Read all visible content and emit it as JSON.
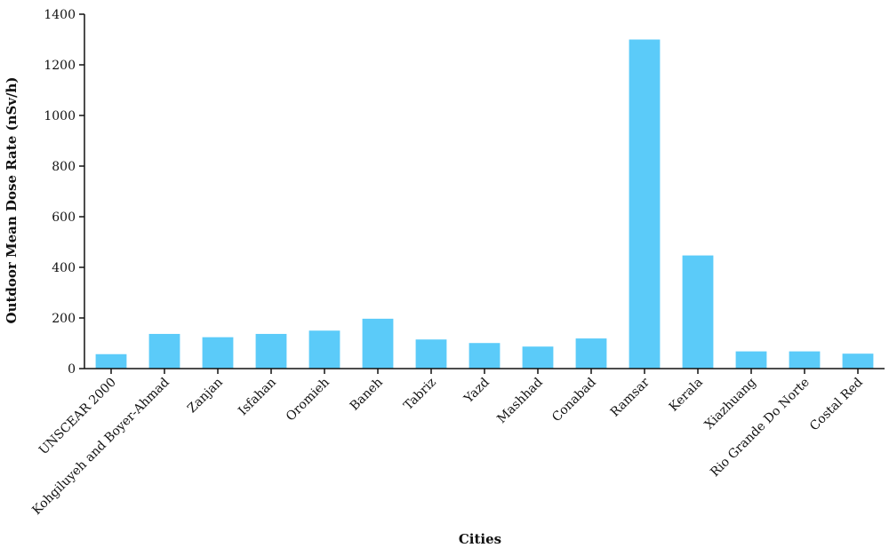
{
  "chart_data": {
    "type": "bar",
    "title": "",
    "xlabel": "Cities",
    "ylabel": "Outdoor Mean Dose Rate (nSv/h)",
    "ylim": [
      0,
      1400
    ],
    "yticks": [
      0,
      200,
      400,
      600,
      800,
      1000,
      1200,
      1400
    ],
    "grid": false,
    "legend": "none",
    "bar_color": "#5BCBF9",
    "categories": [
      "UNSCEAR 2000",
      "Kohgiluyeh and Boyer-Ahmad",
      "Zanjan",
      "Isfahan",
      "Oromieh",
      "Baneh",
      "Tabriz",
      "Yazd",
      "Mashhad",
      "Conabad",
      "Ramsar",
      "Kerala",
      "Xiazhuang",
      "Rio Grande Do Norte",
      "Costal Red"
    ],
    "values": [
      57,
      137,
      124,
      137,
      150,
      197,
      115,
      101,
      87,
      119,
      1300,
      447,
      68,
      68,
      59
    ]
  }
}
